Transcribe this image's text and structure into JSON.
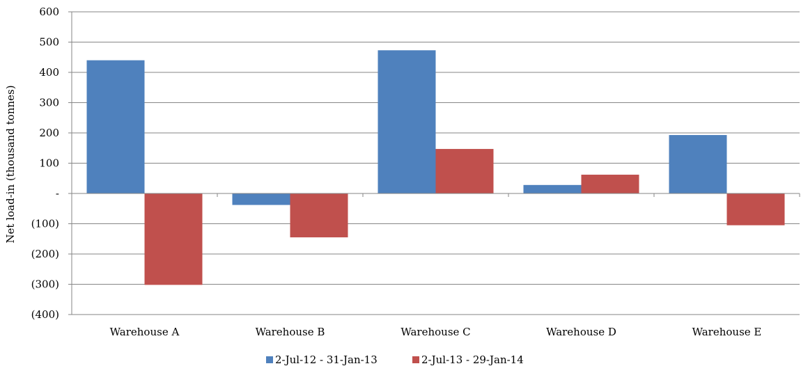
{
  "chart_data": {
    "type": "bar",
    "title": "",
    "xlabel": "",
    "ylabel": "Net load-in (thousand tonnes)",
    "categories": [
      "Warehouse A",
      "Warehouse B",
      "Warehouse C",
      "Warehouse D",
      "Warehouse E"
    ],
    "series": [
      {
        "name": "2-Jul-12 - 31-Jan-13",
        "color": "#4f81bd",
        "values": [
          440,
          -38,
          473,
          28,
          193
        ]
      },
      {
        "name": "2-Jul-13 - 29-Jan-14",
        "color": "#c0504d",
        "values": [
          -302,
          -145,
          147,
          62,
          -105
        ]
      }
    ],
    "ylim": [
      -400,
      600
    ],
    "yticks": [
      600,
      500,
      400,
      300,
      200,
      100,
      0,
      -100,
      -200,
      -300,
      -400
    ],
    "ytick_labels": [
      "600",
      "500",
      "400",
      "300",
      "200",
      "100",
      "-",
      "(100)",
      "(200)",
      "(300)",
      "(400)"
    ],
    "grid": true,
    "legend_position": "bottom-center"
  }
}
